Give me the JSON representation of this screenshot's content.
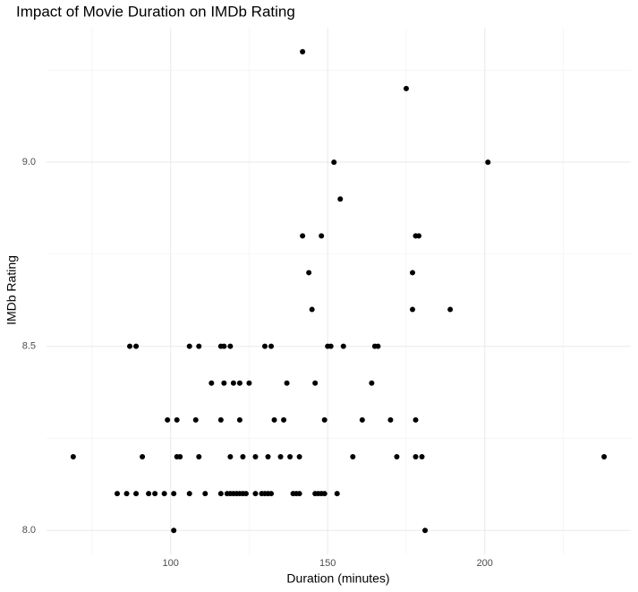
{
  "chart_data": {
    "type": "scatter",
    "title": "Impact of Movie Duration on IMDb Rating",
    "x_label": "Duration (minutes)",
    "y_label": "IMDb Rating",
    "xlim": [
      60.5,
      246.5
    ],
    "ylim": [
      7.935,
      9.365
    ],
    "xticks": [
      100,
      150,
      200
    ],
    "yticks": [
      {
        "value": 8,
        "label": "8.0"
      },
      8.5,
      {
        "value": 9,
        "label": "9.0"
      }
    ],
    "xminor": [
      75,
      125,
      175,
      225
    ],
    "yminor": [
      8.25,
      8.75,
      9.25
    ],
    "grid": true,
    "series": [
      {
        "color": "#000000",
        "x": [
          83,
          86,
          89,
          93,
          95,
          98,
          101,
          106,
          111,
          116,
          118,
          119,
          120,
          121,
          122,
          123,
          124,
          127,
          129,
          130,
          131,
          132,
          139,
          140,
          141,
          146,
          147,
          148,
          149,
          153,
          101,
          181,
          69,
          91,
          102,
          103,
          109,
          119,
          123,
          127,
          131,
          135,
          138,
          141,
          158,
          172,
          178,
          180,
          238,
          99,
          102,
          108,
          116,
          122,
          133,
          136,
          149,
          161,
          170,
          178,
          113,
          117,
          120,
          122,
          125,
          137,
          146,
          164,
          87,
          89,
          106,
          109,
          116,
          117,
          119,
          130,
          132,
          150,
          151,
          155,
          165,
          166,
          145,
          177,
          189,
          144,
          177,
          142,
          148,
          178,
          179,
          154,
          152,
          201,
          175,
          142
        ],
        "values": [
          8.1,
          8.1,
          8.1,
          8.1,
          8.1,
          8.1,
          8.1,
          8.1,
          8.1,
          8.1,
          8.1,
          8.1,
          8.1,
          8.1,
          8.1,
          8.1,
          8.1,
          8.1,
          8.1,
          8.1,
          8.1,
          8.1,
          8.1,
          8.1,
          8.1,
          8.1,
          8.1,
          8.1,
          8.1,
          8.1,
          8,
          8,
          8.2,
          8.2,
          8.2,
          8.2,
          8.2,
          8.2,
          8.2,
          8.2,
          8.2,
          8.2,
          8.2,
          8.2,
          8.2,
          8.2,
          8.2,
          8.2,
          8.2,
          8.3,
          8.3,
          8.3,
          8.3,
          8.3,
          8.3,
          8.3,
          8.3,
          8.3,
          8.3,
          8.3,
          8.4,
          8.4,
          8.4,
          8.4,
          8.4,
          8.4,
          8.4,
          8.4,
          8.5,
          8.5,
          8.5,
          8.5,
          8.5,
          8.5,
          8.5,
          8.5,
          8.5,
          8.5,
          8.5,
          8.5,
          8.5,
          8.5,
          8.6,
          8.6,
          8.6,
          8.7,
          8.7,
          8.8,
          8.8,
          8.8,
          8.8,
          8.9,
          9,
          9,
          9.2,
          9.3
        ]
      }
    ]
  }
}
